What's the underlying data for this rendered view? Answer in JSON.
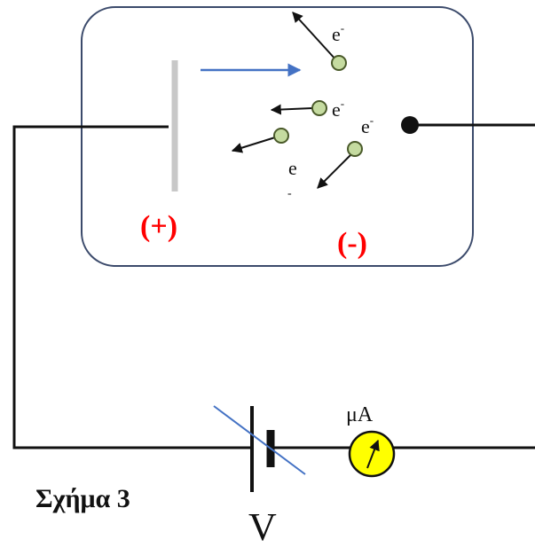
{
  "plate_label": "(+)",
  "cathode_label": "(-)",
  "electron_letter": "e",
  "electron_sup": "-",
  "ammeter_label": "μA",
  "voltage_label": "V",
  "caption": "Σχήμα 3",
  "colors": {
    "outline": "#3b4a6b",
    "wire": "#111111",
    "plate": "#c8c8c8",
    "light_arrow": "#4472c4",
    "electron_fill": "#c5dba0",
    "electron_stroke": "#4a5a2a",
    "label_red": "#ff0000",
    "ammeter_fill": "#ffff00"
  }
}
